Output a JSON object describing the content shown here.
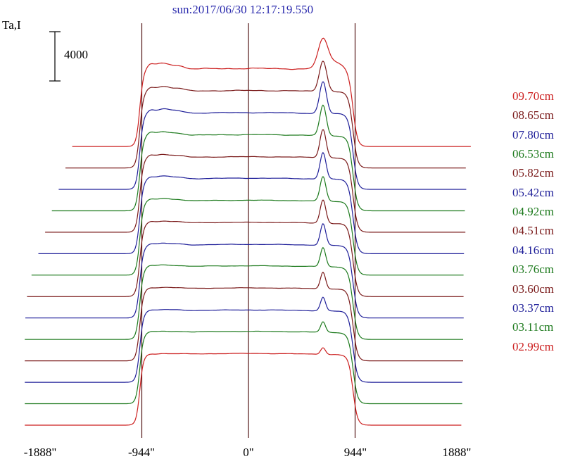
{
  "chart_data": {
    "type": "line",
    "title": "sun:2017/06/30 12:17:19.550",
    "title_color": "#2a2aad",
    "ylabel": "Ta,I",
    "scale_bar": {
      "value": 4000,
      "label": "4000"
    },
    "xlabel": "",
    "xlim": [
      -1888,
      1888
    ],
    "x_unit": "arcsec",
    "x_ticks": [
      "-1888\"",
      "-944\"",
      "0\"",
      "944\"",
      "1888\""
    ],
    "x_tick_values": [
      -1888,
      -944,
      0,
      944,
      1888
    ],
    "fiducial_lines_x": [
      -944,
      0,
      944
    ],
    "fiducial_color": "#521414",
    "grid": "off",
    "legend_position": "right",
    "sun_profile": {
      "left_limb_arcsec": -962,
      "right_limb_arcsec": 925,
      "active_region_peak_arcsec": 660,
      "left_plage_bumps_arcsec": [
        -870,
        -760,
        -620
      ]
    },
    "series": [
      {
        "label": "09.70cm",
        "color": "#cc1f1f",
        "offset": 22620,
        "plateau": 6150,
        "left_bump": 520,
        "peak": 2400,
        "peak_sigma": 62,
        "noise": 30,
        "x_start": -1560,
        "x_end": 1975
      },
      {
        "label": "08.65cm",
        "color": "#7a1a1a",
        "offset": 20880,
        "plateau": 6100,
        "left_bump": 430,
        "peak": 2500,
        "peak_sigma": 46,
        "noise": 22,
        "x_start": -1620,
        "x_end": 1930
      },
      {
        "label": "07.80cm",
        "color": "#1f1f99",
        "offset": 19140,
        "plateau": 6050,
        "left_bump": 380,
        "peak": 2600,
        "peak_sigma": 42,
        "noise": 20,
        "x_start": -1680,
        "x_end": 1930
      },
      {
        "label": "06.53cm",
        "color": "#1d7a1d",
        "offset": 17400,
        "plateau": 6000,
        "left_bump": 330,
        "peak": 2450,
        "peak_sigma": 40,
        "noise": 18,
        "x_start": -1740,
        "x_end": 1920
      },
      {
        "label": "05.82cm",
        "color": "#7a1a1a",
        "offset": 15660,
        "plateau": 5950,
        "left_bump": 290,
        "peak": 2300,
        "peak_sigma": 38,
        "noise": 16,
        "x_start": -1800,
        "x_end": 1920
      },
      {
        "label": "05.42cm",
        "color": "#1f1f99",
        "offset": 13920,
        "plateau": 5950,
        "left_bump": 260,
        "peak": 2150,
        "peak_sigma": 37,
        "noise": 15,
        "x_start": -1860,
        "x_end": 1910
      },
      {
        "label": "04.92cm",
        "color": "#1d7a1d",
        "offset": 12180,
        "plateau": 5900,
        "left_bump": 230,
        "peak": 2000,
        "peak_sigma": 36,
        "noise": 14,
        "x_start": -1920,
        "x_end": 1910
      },
      {
        "label": "04.51cm",
        "color": "#7a1a1a",
        "offset": 10440,
        "plateau": 5850,
        "left_bump": 200,
        "peak": 1900,
        "peak_sigma": 35,
        "noise": 14,
        "x_start": -1960,
        "x_end": 1905
      },
      {
        "label": "04.16cm",
        "color": "#1f1f99",
        "offset": 8700,
        "plateau": 5800,
        "left_bump": 180,
        "peak": 1750,
        "peak_sigma": 34,
        "noise": 13,
        "x_start": -1975,
        "x_end": 1905
      },
      {
        "label": "03.76cm",
        "color": "#1d7a1d",
        "offset": 6960,
        "plateau": 5800,
        "left_bump": 160,
        "peak": 1550,
        "peak_sigma": 33,
        "noise": 13,
        "x_start": -1980,
        "x_end": 1900
      },
      {
        "label": "03.60cm",
        "color": "#7a1a1a",
        "offset": 5220,
        "plateau": 5750,
        "left_bump": 140,
        "peak": 1350,
        "peak_sigma": 32,
        "noise": 12,
        "x_start": -1980,
        "x_end": 1900
      },
      {
        "label": "03.37cm",
        "color": "#1f1f99",
        "offset": 3480,
        "plateau": 5700,
        "left_bump": 120,
        "peak": 1100,
        "peak_sigma": 31,
        "noise": 12,
        "x_start": -1980,
        "x_end": 1895
      },
      {
        "label": "03.11cm",
        "color": "#1d7a1d",
        "offset": 1740,
        "plateau": 5700,
        "left_bump": 100,
        "peak": 850,
        "peak_sigma": 30,
        "noise": 12,
        "x_start": -1980,
        "x_end": 1895
      },
      {
        "label": "02.99cm",
        "color": "#cc1f1f",
        "offset": 0,
        "plateau": 5650,
        "left_bump": 80,
        "peak": 550,
        "peak_sigma": 30,
        "noise": 12,
        "x_start": -1980,
        "x_end": 1890
      }
    ]
  }
}
